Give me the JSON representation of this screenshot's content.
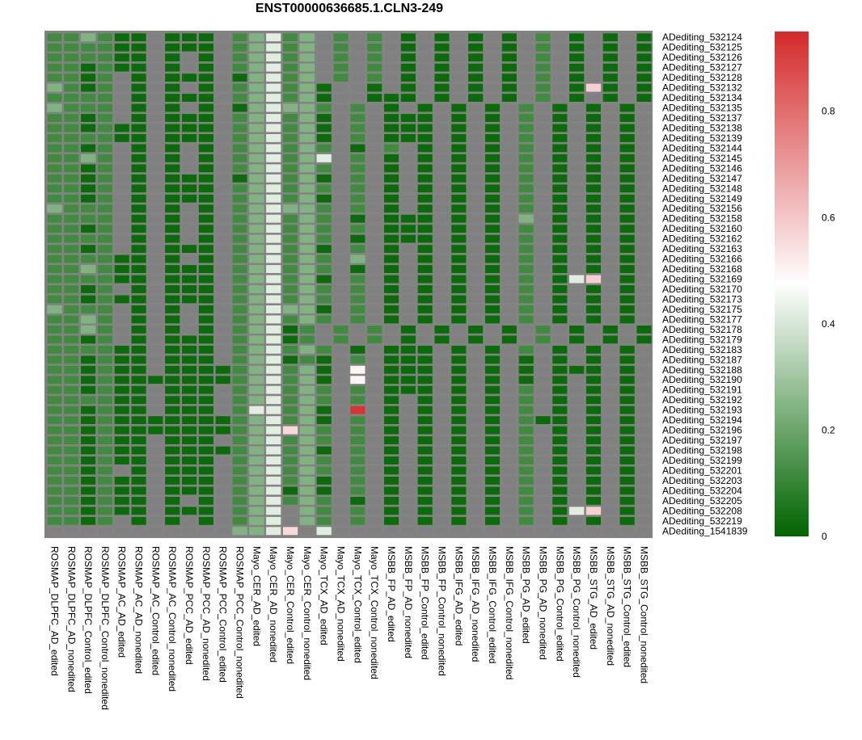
{
  "chart_data": {
    "type": "heatmap",
    "title": "ENST00000636685.1.CLN3-249",
    "rows": [
      "ADediting_532124",
      "ADediting_532125",
      "ADediting_532126",
      "ADediting_532127",
      "ADediting_532128",
      "ADediting_532132",
      "ADediting_532134",
      "ADediting_532135",
      "ADediting_532137",
      "ADediting_532138",
      "ADediting_532139",
      "ADediting_532144",
      "ADediting_532145",
      "ADediting_532146",
      "ADediting_532147",
      "ADediting_532148",
      "ADediting_532149",
      "ADediting_532156",
      "ADediting_532158",
      "ADediting_532160",
      "ADediting_532162",
      "ADediting_532163",
      "ADediting_532166",
      "ADediting_532168",
      "ADediting_532169",
      "ADediting_532170",
      "ADediting_532173",
      "ADediting_532175",
      "ADediting_532177",
      "ADediting_532178",
      "ADediting_532179",
      "ADediting_532183",
      "ADediting_532187",
      "ADediting_532188",
      "ADediting_532190",
      "ADediting_532191",
      "ADediting_532192",
      "ADediting_532193",
      "ADediting_532194",
      "ADediting_532196",
      "ADediting_532197",
      "ADediting_532198",
      "ADediting_532199",
      "ADediting_532201",
      "ADediting_532203",
      "ADediting_532204",
      "ADediting_532205",
      "ADediting_532208",
      "ADediting_532219",
      "ADediting_1541839"
    ],
    "columns": [
      "ROSMAP_DLPFC_AD_edited",
      "ROSMAP_DLPFC_AD_nonedited",
      "ROSMAP_DLPFC_Control_edited",
      "ROSMAP_DLPFC_Control_nonedited",
      "ROSMAP_AC_AD_edited",
      "ROSMAP_AC_AD_nonedited",
      "ROSMAP_AC_Control_edited",
      "ROSMAP_AC_Control_nonedited",
      "ROSMAP_PCC_AD_edited",
      "ROSMAP_PCC_AD_nonedited",
      "ROSMAP_PCC_Control_edited",
      "ROSMAP_PCC_Control_nonedited",
      "Mayo_CER_AD_edited",
      "Mayo_CER_AD_nonedited",
      "Mayo_CER_Control_edited",
      "Mayo_CER_Control_nonedited",
      "Mayo_TCX_AD_edited",
      "Mayo_TCX_AD_nonedited",
      "Mayo_TCX_Control_edited",
      "Mayo_TCX_Control_nonedited",
      "MSBB_FP_AD_edited",
      "MSBB_FP_AD_nonedited",
      "MSBB_FP_Control_edited",
      "MSBB_FP_Control_nonedited",
      "MSBB_IFG_AD_edited",
      "MSBB_IFG_AD_nonedited",
      "MSBB_IFG_Control_edited",
      "MSBB_IFG_Control_nonedited",
      "MSBB_PG_AD_edited",
      "MSBB_PG_AD_nonedited",
      "MSBB_PG_Control_edited",
      "MSBB_PG_Control_nonedited",
      "MSBB_STG_AD_edited",
      "MSBB_STG_AD_nonedited",
      "MSBB_STG_Control_edited",
      "MSBB_STG_Control_nonedited"
    ],
    "row_patterns": [
      "BBCBAA.AAA.BCWBC.B.B.A.A.A.A.B.A.A.A",
      "BBBBAA.AAA.BCWBC.B.B.A.A.A.A.B.A.A.A",
      "BBBBAA.A.A.BCWBC.B.B.A.A.A.A.B.A.A.A",
      "BBABAA.A.A.BCWBC.B.B.A.A.A.A.B.A.A.A",
      "BBAB.A.AAA.ACWBC.B.B.A.A.A.A.B.A.A.A",
      "CBAB.A.A.A.BCWBCA..A.A.A.A.A.B.AWA.A",
      "BBBB.A.AAA.BCWBCA..AAA.A.A.A.B.A.A.A",
      "CBBB.A.A.A.ACWCCB.B.A.A.A.A.B.A.A.A",
      "BBAB.A.AAA.BCWBCA.B.AAA.A.A.B.A.A.A",
      "BBABAA.AAA.BCWBCA.B.AAA.A.A.B.A.A.A",
      "BBBBAA.AAA.BCWBCA.B.AAA.A.A.B.A.A.A",
      "BBAB.A.A.A.BCWBCB.A.B.A.A.A.B.A.A.A",
      "BBCB.A.A.A.BCWBCW.B.A.A.A.A.B.A.A.A",
      "BBAB.A.A.A.BCWBCB.B.A.A.A.A.B.A.A.A",
      "BBAB.A.AAA.ACWBCA.B.A.A.A.A.B.A.A.A",
      "BBAB.A.AAA.BCWBCB.B.A.A.A.A.B.A.A.A",
      "BBAB.A.AAA.BCWBCA.B.A.A.A.A.B.A.A.A",
      "CBBB.A.A.A.BCWCCB.B.A.A.A.A.B.A.A.A",
      "BBBB.A.A.A.BCWBCB.A.AAA.A.A.C.A.A.A",
      "BBAB.A.A.A.BCWBCB.B.AAA.A.A.B.A.A.A",
      "BBBB.A.A.A.BCWBCB.A.AAA.A.A.B.A.A.A",
      "BBAB.A.AAA.BCWBCA.B.A.A.A.A.B.A.A.A",
      "BBBBAA.A.A.BCWBCB.C.A.A.A.A.B.A.A.A",
      "BBCBAA.AAA.BCWBCB.A.A.A.A.A.B.A.A.A",
      "BBBBAA.AAA.BCWBCA.B.A.A.A.A.B.AWA.A",
      "BBAB.A.AAA.BCWBCB.B.A.A.A.A.B.A.A.A",
      "BBABAA.AAA.BCWBCB.B.A.A.A.A.B.A.A.A",
      "CBBB.A.A.A.BCWCCA.B.A.A.A.A.B.A.A.A",
      "BBCB.A.A.A.BCWBCB.B.A.A.A.A.B.A.A.A",
      "BBCB.A.A.A.BCWAB.B.B.A.A.A.A.B.A.A.A",
      "BBAB.A.AAA.BCWAB.B.B.A.A.A.A.B.A.A.A",
      "BBBBAA.AAA.BCWBCB.A.AAA.A.A.B.A.A.A",
      "BBABAA.AAA.BCWABA.B.AAA.A.A.A.A.A.A",
      "BBABAA.AAAABCWBCA.W.AAA.A.A.A.AAA.A",
      "BBABAAAAAAABCWBCA.W.AAA.A.A.A.A.A.A",
      "BBABAA.AAA.BCWBCB.B.AAA.A.A.B.A.A.A",
      "BBBBAA.AAA.BCWBCB.B.A.A.A.A.B.A.A.A",
      "BBABAA.AAA.BWWBCA.R.A.A.A.A.B.A.A.A",
      "BBABAAAAAAABCWBCA.B.A.A.A.A.BAA.A.A",
      "BBABAAAAAAABCWWCB.B.A.A.A.A.B.A.A.A",
      "BBABAA.AAA.BCWBCB.B.A.A.A.A.B.A.A.A",
      "BBABAA.AAAABCWBCA.B.A.A.A.A.B.A.A.A",
      "BBABAA.AAA.BCWBCB.B.A.A.A.A.B.A.A.A",
      "BBAB.A.AAA.BCWBCB.B.A.A.A.A.B.A.A.A",
      "BBABAA.AAA.BCWBCA.B.A.A.A.A.B.A.A.A",
      "BBABAA.AAA.BCWACA.B.A.A.A.A.B.A.A.A",
      "BBABAA.A.A.BCWBCB.A.A.A.A.A.B.A.A.A",
      "BBABAA.AAA.BCW.CB.B.A.A.A.A.B.AWA.A",
      "BBAB.A.A.A.BCW.CB.B.A.A.A.A.B.A.A.A",
      "...........CCW..W..................."
    ],
    "cell_code_values": {
      "A": 0.02,
      "B": 0.12,
      "C": 0.24,
      "W": 0.42,
      "R": 0.9,
      ".": null
    },
    "special_cells": [
      {
        "row": "ADediting_532132",
        "column": "MSBB_STG_AD_edited",
        "value": 0.58
      },
      {
        "row": "ADediting_532169",
        "column": "MSBB_STG_AD_edited",
        "value": 0.58
      },
      {
        "row": "ADediting_532208",
        "column": "MSBB_STG_AD_edited",
        "value": 0.58
      },
      {
        "row": "ADediting_532193",
        "column": "Mayo_TCX_Control_edited",
        "value": 0.93
      },
      {
        "row": "ADediting_532188",
        "column": "Mayo_TCX_Control_edited",
        "value": 0.5
      },
      {
        "row": "ADediting_532190",
        "column": "Mayo_TCX_Control_edited",
        "value": 0.5
      },
      {
        "row": "ADediting_1541839",
        "column": "Mayo_CER_Control_edited",
        "value": 0.56
      },
      {
        "row": "ADediting_532196",
        "column": "Mayo_CER_Control_edited",
        "value": 0.56
      }
    ],
    "na_color": "#808080",
    "colorscale": {
      "low": "#006400",
      "mid": "#ffffff",
      "high": "#d42a2a",
      "min": 0,
      "mid_value": 0.475,
      "max": 0.95
    },
    "colorbar_ticks": [
      "0",
      "0.2",
      "0.4",
      "0.6",
      "0.8"
    ],
    "colorbar_tick_values": [
      0,
      0.2,
      0.4,
      0.6,
      0.8
    ]
  }
}
